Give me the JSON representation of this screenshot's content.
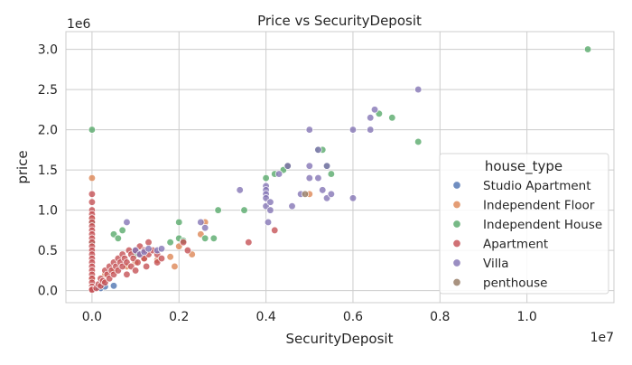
{
  "chart_data": {
    "type": "scatter",
    "title": "Price vs SecurityDeposit",
    "xlabel": "SecurityDeposit",
    "ylabel": "price",
    "x_offset_label": "1e7",
    "y_offset_label": "1e6",
    "xlim": [
      -600000,
      12000000
    ],
    "ylim": [
      -150000,
      3220000
    ],
    "x_ticks": [
      0,
      2000000,
      4000000,
      6000000,
      8000000,
      10000000
    ],
    "x_tick_labels": [
      "0.0",
      "0.2",
      "0.4",
      "0.6",
      "0.8",
      "1.0"
    ],
    "y_ticks": [
      0,
      500000,
      1000000,
      1500000,
      2000000,
      2500000,
      3000000
    ],
    "y_tick_labels": [
      "0.0",
      "0.5",
      "1.0",
      "1.5",
      "2.0",
      "2.5",
      "3.0"
    ],
    "grid": true,
    "legend_title": "house_type",
    "legend_position": "right",
    "series": [
      {
        "name": "Studio Apartment",
        "color": "#4c72b0",
        "points": [
          [
            0,
            20000
          ],
          [
            0,
            35000
          ],
          [
            50000,
            25000
          ],
          [
            100000,
            40000
          ],
          [
            200000,
            30000
          ],
          [
            300000,
            50000
          ],
          [
            500000,
            60000
          ]
        ]
      },
      {
        "name": "Independent Floor",
        "color": "#dd8452",
        "points": [
          [
            0,
            1400000
          ],
          [
            0,
            900000
          ],
          [
            0,
            50000
          ],
          [
            0,
            150000
          ],
          [
            300000,
            200000
          ],
          [
            500000,
            250000
          ],
          [
            800000,
            300000
          ],
          [
            1000000,
            350000
          ],
          [
            1200000,
            400000
          ],
          [
            1500000,
            380000
          ],
          [
            1800000,
            420000
          ],
          [
            1900000,
            300000
          ],
          [
            2000000,
            550000
          ],
          [
            2300000,
            450000
          ],
          [
            2500000,
            700000
          ],
          [
            2600000,
            850000
          ],
          [
            4500000,
            1550000
          ],
          [
            5000000,
            1200000
          ]
        ]
      },
      {
        "name": "Independent House",
        "color": "#55a868",
        "points": [
          [
            0,
            2000000
          ],
          [
            0,
            850000
          ],
          [
            0,
            600000
          ],
          [
            500000,
            700000
          ],
          [
            600000,
            650000
          ],
          [
            700000,
            750000
          ],
          [
            1000000,
            450000
          ],
          [
            1800000,
            600000
          ],
          [
            2000000,
            850000
          ],
          [
            2000000,
            650000
          ],
          [
            2100000,
            620000
          ],
          [
            2600000,
            650000
          ],
          [
            2800000,
            650000
          ],
          [
            2900000,
            1000000
          ],
          [
            3500000,
            1000000
          ],
          [
            4000000,
            1400000
          ],
          [
            4200000,
            1450000
          ],
          [
            4400000,
            1500000
          ],
          [
            4500000,
            1550000
          ],
          [
            5200000,
            1750000
          ],
          [
            5300000,
            1750000
          ],
          [
            5400000,
            1550000
          ],
          [
            5500000,
            1450000
          ],
          [
            6600000,
            2200000
          ],
          [
            6900000,
            2150000
          ],
          [
            7500000,
            1850000
          ],
          [
            11400000,
            3000000
          ]
        ]
      },
      {
        "name": "Apartment",
        "color": "#c44e52",
        "points": [
          [
            0,
            1200000
          ],
          [
            0,
            1100000
          ],
          [
            0,
            1000000
          ],
          [
            0,
            950000
          ],
          [
            0,
            900000
          ],
          [
            0,
            850000
          ],
          [
            0,
            800000
          ],
          [
            0,
            750000
          ],
          [
            0,
            700000
          ],
          [
            0,
            650000
          ],
          [
            0,
            600000
          ],
          [
            0,
            550000
          ],
          [
            0,
            500000
          ],
          [
            0,
            450000
          ],
          [
            0,
            400000
          ],
          [
            0,
            350000
          ],
          [
            0,
            300000
          ],
          [
            0,
            250000
          ],
          [
            0,
            200000
          ],
          [
            0,
            150000
          ],
          [
            0,
            100000
          ],
          [
            0,
            50000
          ],
          [
            0,
            20000
          ],
          [
            0,
            10000
          ],
          [
            100000,
            30000
          ],
          [
            150000,
            80000
          ],
          [
            200000,
            60000
          ],
          [
            200000,
            150000
          ],
          [
            250000,
            120000
          ],
          [
            300000,
            100000
          ],
          [
            300000,
            250000
          ],
          [
            350000,
            200000
          ],
          [
            400000,
            150000
          ],
          [
            400000,
            300000
          ],
          [
            450000,
            250000
          ],
          [
            500000,
            200000
          ],
          [
            500000,
            350000
          ],
          [
            550000,
            300000
          ],
          [
            600000,
            250000
          ],
          [
            600000,
            400000
          ],
          [
            650000,
            350000
          ],
          [
            700000,
            300000
          ],
          [
            700000,
            450000
          ],
          [
            750000,
            400000
          ],
          [
            800000,
            200000
          ],
          [
            800000,
            350000
          ],
          [
            850000,
            500000
          ],
          [
            900000,
            300000
          ],
          [
            900000,
            450000
          ],
          [
            950000,
            400000
          ],
          [
            1000000,
            250000
          ],
          [
            1000000,
            500000
          ],
          [
            1050000,
            350000
          ],
          [
            1100000,
            450000
          ],
          [
            1100000,
            550000
          ],
          [
            1200000,
            400000
          ],
          [
            1200000,
            500000
          ],
          [
            1250000,
            300000
          ],
          [
            1300000,
            450000
          ],
          [
            1300000,
            600000
          ],
          [
            1400000,
            500000
          ],
          [
            1500000,
            350000
          ],
          [
            1500000,
            450000
          ],
          [
            1600000,
            400000
          ],
          [
            2100000,
            600000
          ],
          [
            2200000,
            500000
          ],
          [
            3600000,
            600000
          ],
          [
            4200000,
            750000
          ]
        ]
      },
      {
        "name": "Villa",
        "color": "#8172b3",
        "points": [
          [
            800000,
            850000
          ],
          [
            1000000,
            500000
          ],
          [
            1100000,
            450000
          ],
          [
            1200000,
            480000
          ],
          [
            1300000,
            520000
          ],
          [
            1500000,
            500000
          ],
          [
            1600000,
            520000
          ],
          [
            2500000,
            850000
          ],
          [
            2600000,
            780000
          ],
          [
            3400000,
            1250000
          ],
          [
            4000000,
            1300000
          ],
          [
            4000000,
            1250000
          ],
          [
            4000000,
            1200000
          ],
          [
            4000000,
            1150000
          ],
          [
            4000000,
            1050000
          ],
          [
            4050000,
            850000
          ],
          [
            4100000,
            1100000
          ],
          [
            4100000,
            1000000
          ],
          [
            4300000,
            1450000
          ],
          [
            4500000,
            1550000
          ],
          [
            4600000,
            1050000
          ],
          [
            4800000,
            1200000
          ],
          [
            5000000,
            1400000
          ],
          [
            5000000,
            1550000
          ],
          [
            5000000,
            2000000
          ],
          [
            5200000,
            1400000
          ],
          [
            5200000,
            1750000
          ],
          [
            5300000,
            1250000
          ],
          [
            5400000,
            1150000
          ],
          [
            5400000,
            1550000
          ],
          [
            5500000,
            1200000
          ],
          [
            6000000,
            1150000
          ],
          [
            6000000,
            2000000
          ],
          [
            6400000,
            2000000
          ],
          [
            6400000,
            2150000
          ],
          [
            6500000,
            2250000
          ],
          [
            7500000,
            2500000
          ]
        ]
      },
      {
        "name": "penthouse",
        "color": "#937860",
        "points": [
          [
            4900000,
            1200000
          ]
        ]
      }
    ]
  }
}
